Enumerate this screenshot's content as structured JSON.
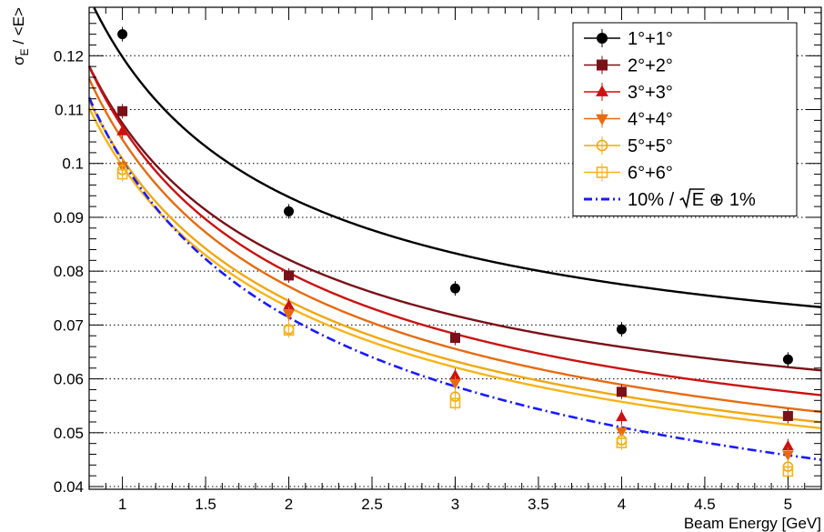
{
  "chart_data": {
    "type": "scatter",
    "xlabel": "Beam Energy [GeV]",
    "ylabel": {
      "sigma": "σ",
      "sub": "E",
      "rest": " / <E>"
    },
    "xlim": [
      0.8,
      5.2
    ],
    "ylim": [
      0.0395,
      0.129
    ],
    "x_ticks": [
      1,
      1.5,
      2,
      2.5,
      3,
      3.5,
      4,
      4.5,
      5
    ],
    "x_tick_labels": [
      "1",
      "1.5",
      "2",
      "2.5",
      "3",
      "3.5",
      "4",
      "4.5",
      "5"
    ],
    "y_ticks": [
      0.04,
      0.05,
      0.06,
      0.07,
      0.08,
      0.09,
      0.1,
      0.11,
      0.12
    ],
    "y_tick_labels": [
      "0.04",
      "0.05",
      "0.06",
      "0.07",
      "0.08",
      "0.09",
      "0.1",
      "0.11",
      "0.12"
    ],
    "grid": {
      "horizontal_dotted": true,
      "vertical": false
    },
    "legend_position": "top-right",
    "series": [
      {
        "name": "1°+1°",
        "color": "#000000",
        "marker": "circle",
        "x": [
          1,
          2,
          3,
          4,
          5
        ],
        "y": [
          0.124,
          0.0911,
          0.0768,
          0.0692,
          0.0636
        ],
        "fit": {
          "a": 0.1054,
          "b": 0.0569
        }
      },
      {
        "name": "2°+2°",
        "color": "#7a1018",
        "marker": "square",
        "x": [
          1,
          2,
          3,
          4,
          5
        ],
        "y": [
          0.1097,
          0.0792,
          0.0676,
          0.0576,
          0.0531
        ],
        "fit": {
          "a": 0.098,
          "b": 0.0441
        }
      },
      {
        "name": "3°+3°",
        "color": "#cc1111",
        "marker": "triangle-up",
        "x": [
          1,
          2,
          3,
          4,
          5
        ],
        "y": [
          0.106,
          0.0736,
          0.0606,
          0.0529,
          0.0475
        ],
        "fit": {
          "a": 0.1005,
          "b": 0.0361
        }
      },
      {
        "name": "4°+4°",
        "color": "#e86a10",
        "marker": "triangle-down",
        "x": [
          1,
          2,
          3,
          4,
          5
        ],
        "y": [
          0.0995,
          0.072,
          0.0592,
          0.0502,
          0.0459
        ],
        "fit": {
          "a": 0.0996,
          "b": 0.0315
        }
      },
      {
        "name": "5°+5°",
        "color": "#f0a810",
        "marker": "open-circle",
        "x": [
          1,
          2,
          3,
          4,
          5
        ],
        "y": [
          0.0988,
          0.0692,
          0.0567,
          0.0486,
          0.0437
        ],
        "fit": {
          "a": 0.0962,
          "b": 0.0303
        }
      },
      {
        "name": "6°+6°",
        "color": "#f8b418",
        "marker": "open-square",
        "x": [
          1,
          2,
          3,
          4,
          5
        ],
        "y": [
          0.098,
          0.069,
          0.0555,
          0.0481,
          0.0428
        ],
        "fit": {
          "a": 0.0952,
          "b": 0.029
        }
      }
    ],
    "reference_curve": {
      "name_parts": [
        "10% / ",
        "E",
        " ⊕ 1%"
      ],
      "color": "#1a1aff",
      "style": "dash-dot",
      "a": 0.1,
      "b": 0.01
    }
  }
}
